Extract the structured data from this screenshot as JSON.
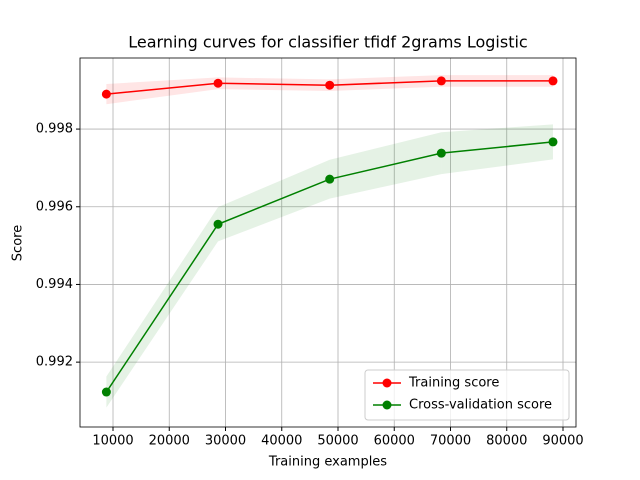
{
  "chart_data": {
    "type": "line",
    "title": "Learning curves for classifier tfidf 2grams Logistic",
    "x_label": "Training examples",
    "y_label": "Score",
    "x": [
      8822,
      28672,
      48522,
      68372,
      88222
    ],
    "series": [
      {
        "name": "Training score",
        "color": "#ff0000",
        "values": [
          0.9989,
          0.99918,
          0.99913,
          0.99924,
          0.99924
        ],
        "std": [
          0.00026,
          0.00015,
          0.00015,
          0.00015,
          0.00015
        ]
      },
      {
        "name": "Cross-validation score",
        "color": "#008000",
        "values": [
          0.99123,
          0.99555,
          0.99671,
          0.99738,
          0.99767
        ],
        "std": [
          0.0004,
          0.00044,
          0.0005,
          0.00054,
          0.00045
        ]
      }
    ],
    "xlim": [
      4133,
      92311
    ],
    "ylim": [
      0.99033,
      0.99983
    ],
    "xticks": [
      10000,
      20000,
      30000,
      40000,
      50000,
      60000,
      70000,
      80000,
      90000
    ],
    "yticks": [
      0.992,
      0.994,
      0.996,
      0.998
    ],
    "grid": true,
    "legend": "lower right"
  }
}
